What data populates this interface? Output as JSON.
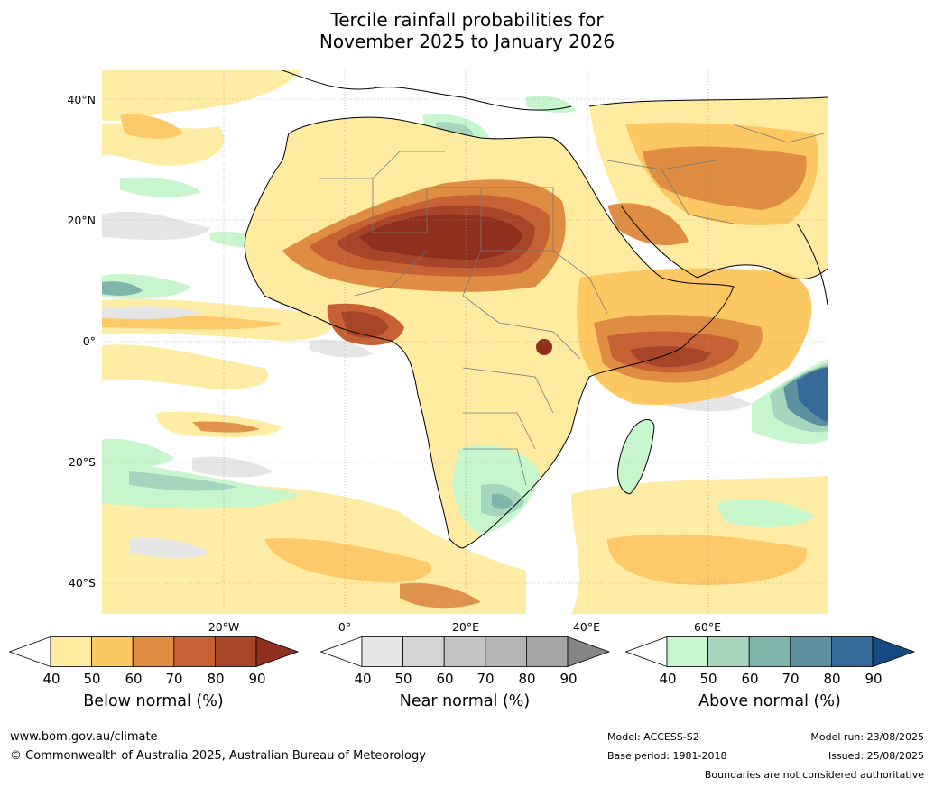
{
  "title": {
    "line1": "Tercile rainfall probabilities for",
    "line2": "November 2025 to January 2026"
  },
  "map": {
    "lat_labels": [
      "40°N",
      "20°N",
      "0°",
      "20°S",
      "40°S"
    ],
    "lon_labels": [
      "20°W",
      "0°",
      "20°E",
      "40°E",
      "60°E"
    ]
  },
  "legends": {
    "below": {
      "title": "Below normal (%)",
      "ticks": [
        "40",
        "50",
        "60",
        "70",
        "80",
        "90"
      ],
      "colors": [
        "#ffffff",
        "#ffeba0",
        "#fdc762",
        "#de8d43",
        "#c76133",
        "#a84428",
        "#8f2f1e"
      ]
    },
    "near": {
      "title": "Near normal (%)",
      "ticks": [
        "40",
        "50",
        "60",
        "70",
        "80",
        "90"
      ],
      "colors": [
        "#ffffff",
        "#e5e5e5",
        "#d4d4d4",
        "#c3c3c3",
        "#b4b4b4",
        "#a5a5a5",
        "#858585"
      ]
    },
    "above": {
      "title": "Above normal (%)",
      "ticks": [
        "40",
        "50",
        "60",
        "70",
        "80",
        "90"
      ],
      "colors": [
        "#ffffff",
        "#c8f6cc",
        "#a5d5bd",
        "#7fb4aa",
        "#5c90a0",
        "#336a9a",
        "#154a82"
      ]
    }
  },
  "footer": {
    "url": "www.bom.gov.au/climate",
    "copyright": "© Commonwealth of Australia 2025, Australian Bureau of Meteorology",
    "model": "Model: ACCESS-S2",
    "base_period": "Base period: 1981-2018",
    "model_run": "Model run: 23/08/2025",
    "issued": "Issued: 25/08/2025",
    "disclaimer": "Boundaries are not considered authoritative"
  }
}
